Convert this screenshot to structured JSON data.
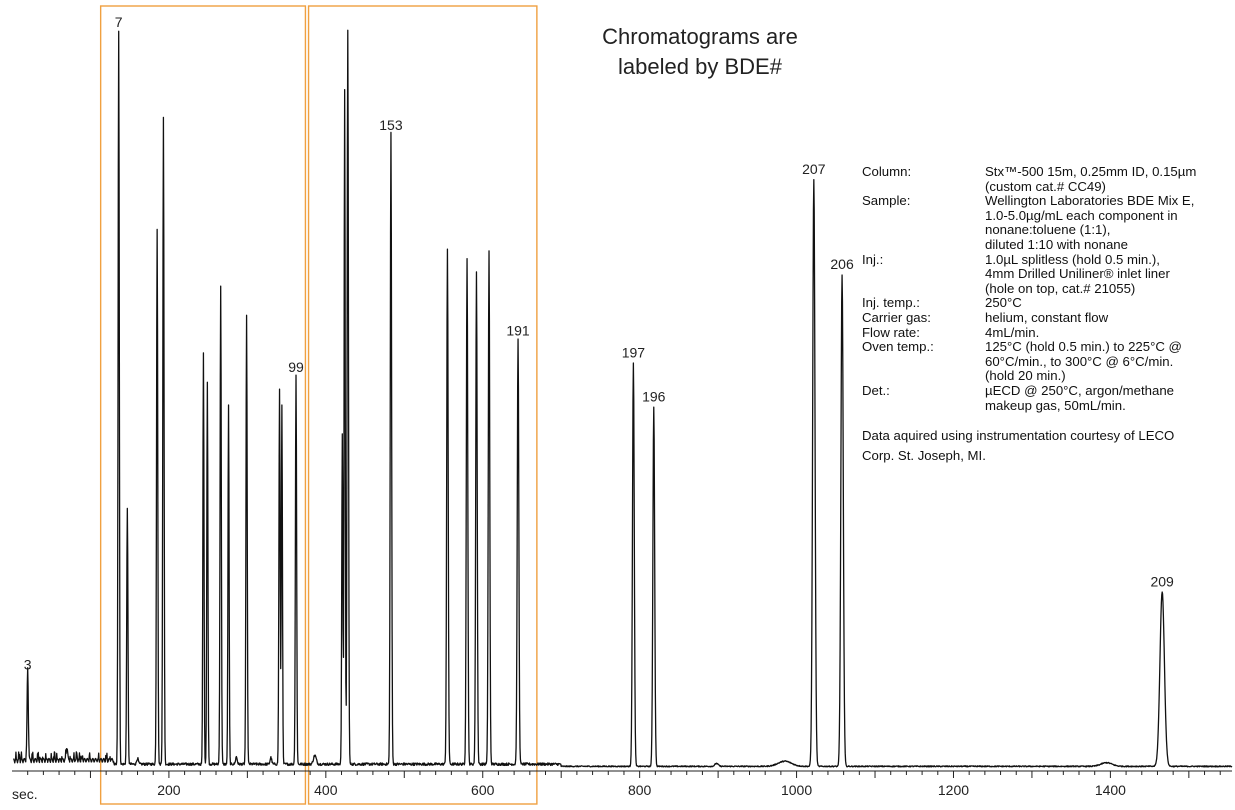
{
  "title_lines": [
    "Chromatograms are",
    "labeled by BDE#"
  ],
  "colors": {
    "trace": "#111111",
    "box": "#f0a040",
    "axis": "#222222"
  },
  "chart_data": {
    "type": "line",
    "title": "Chromatograms are labeled by BDE#",
    "xlabel": "sec.",
    "ylabel": "",
    "x_ticks": [
      200,
      400,
      600,
      800,
      1000,
      1200,
      1400
    ],
    "xlim": [
      0,
      1555
    ],
    "ylim": [
      0,
      100
    ],
    "grid": false,
    "peaks": [
      {
        "x": 20,
        "h": 12.5,
        "w": 1.1
      },
      {
        "x": 70,
        "h": 1.8,
        "w": 1.2
      },
      {
        "x": 136,
        "h": 100,
        "w": 1.1
      },
      {
        "x": 147,
        "h": 35,
        "w": 1.1
      },
      {
        "x": 185,
        "h": 73,
        "w": 1.1
      },
      {
        "x": 193,
        "h": 88,
        "w": 1.1
      },
      {
        "x": 244,
        "h": 56,
        "w": 1.0
      },
      {
        "x": 249,
        "h": 52,
        "w": 1.0
      },
      {
        "x": 266,
        "h": 65,
        "w": 1.1
      },
      {
        "x": 276,
        "h": 49,
        "w": 1.0
      },
      {
        "x": 299,
        "h": 61,
        "w": 1.1
      },
      {
        "x": 341,
        "h": 51,
        "w": 1.1
      },
      {
        "x": 344,
        "h": 49,
        "w": 1.0
      },
      {
        "x": 362,
        "h": 53,
        "w": 1.1
      },
      {
        "x": 421,
        "h": 45,
        "w": 1.0
      },
      {
        "x": 424,
        "h": 92,
        "w": 1.0
      },
      {
        "x": 428,
        "h": 100,
        "w": 1.2
      },
      {
        "x": 483,
        "h": 86,
        "w": 1.2
      },
      {
        "x": 555,
        "h": 70,
        "w": 1.3
      },
      {
        "x": 580,
        "h": 69,
        "w": 1.3
      },
      {
        "x": 592,
        "h": 67,
        "w": 1.3
      },
      {
        "x": 608,
        "h": 70,
        "w": 1.3
      },
      {
        "x": 645,
        "h": 58,
        "w": 1.4
      },
      {
        "x": 792,
        "h": 55,
        "w": 1.6
      },
      {
        "x": 818,
        "h": 49,
        "w": 1.6
      },
      {
        "x": 1022,
        "h": 80,
        "w": 2.1
      },
      {
        "x": 1058,
        "h": 67,
        "w": 2.1
      },
      {
        "x": 1466,
        "h": 23.8,
        "w": 4.0
      }
    ],
    "peak_labels": [
      {
        "text": "3",
        "x": 20
      },
      {
        "text": "7",
        "x": 136
      },
      {
        "text": "99",
        "x": 362
      },
      {
        "text": "153",
        "x": 483
      },
      {
        "text": "191",
        "x": 645
      },
      {
        "text": "197",
        "x": 792
      },
      {
        "text": "196",
        "x": 818
      },
      {
        "text": "207",
        "x": 1022
      },
      {
        "text": "206",
        "x": 1058
      },
      {
        "text": "209",
        "x": 1466
      }
    ],
    "highlight_ranges": [
      [
        113,
        374
      ],
      [
        378,
        669
      ]
    ]
  },
  "conditions": [
    {
      "label": "Column:",
      "value": "Stx™-500 15m, 0.25mm ID, 0.15µm\n(custom cat.# CC49)"
    },
    {
      "label": "Sample:",
      "value": "Wellington Laboratories BDE Mix E,\n1.0-5.0µg/mL each component in\nnonane:toluene (1:1),\ndiluted 1:10 with nonane"
    },
    {
      "label": "Inj.:",
      "value": "1.0µL splitless (hold 0.5 min.),\n4mm Drilled Uniliner® inlet liner\n(hole on top, cat.# 21055)"
    },
    {
      "label": "Inj. temp.:",
      "value": "250°C"
    },
    {
      "label": "Carrier gas:",
      "value": "helium, constant flow"
    },
    {
      "label": "Flow rate:",
      "value": "4mL/min."
    },
    {
      "label": "Oven temp.:",
      "value": "125°C (hold 0.5 min.) to 225°C @\n60°C/min., to 300°C @ 6°C/min.\n(hold 20 min.)"
    },
    {
      "label": "Det.:",
      "value": "µECD @ 250°C, argon/methane\nmakeup gas, 50mL/min."
    }
  ],
  "note": "Data aquired using instrumentation courtesy of LECO\nCorp. St. Joseph, MI."
}
